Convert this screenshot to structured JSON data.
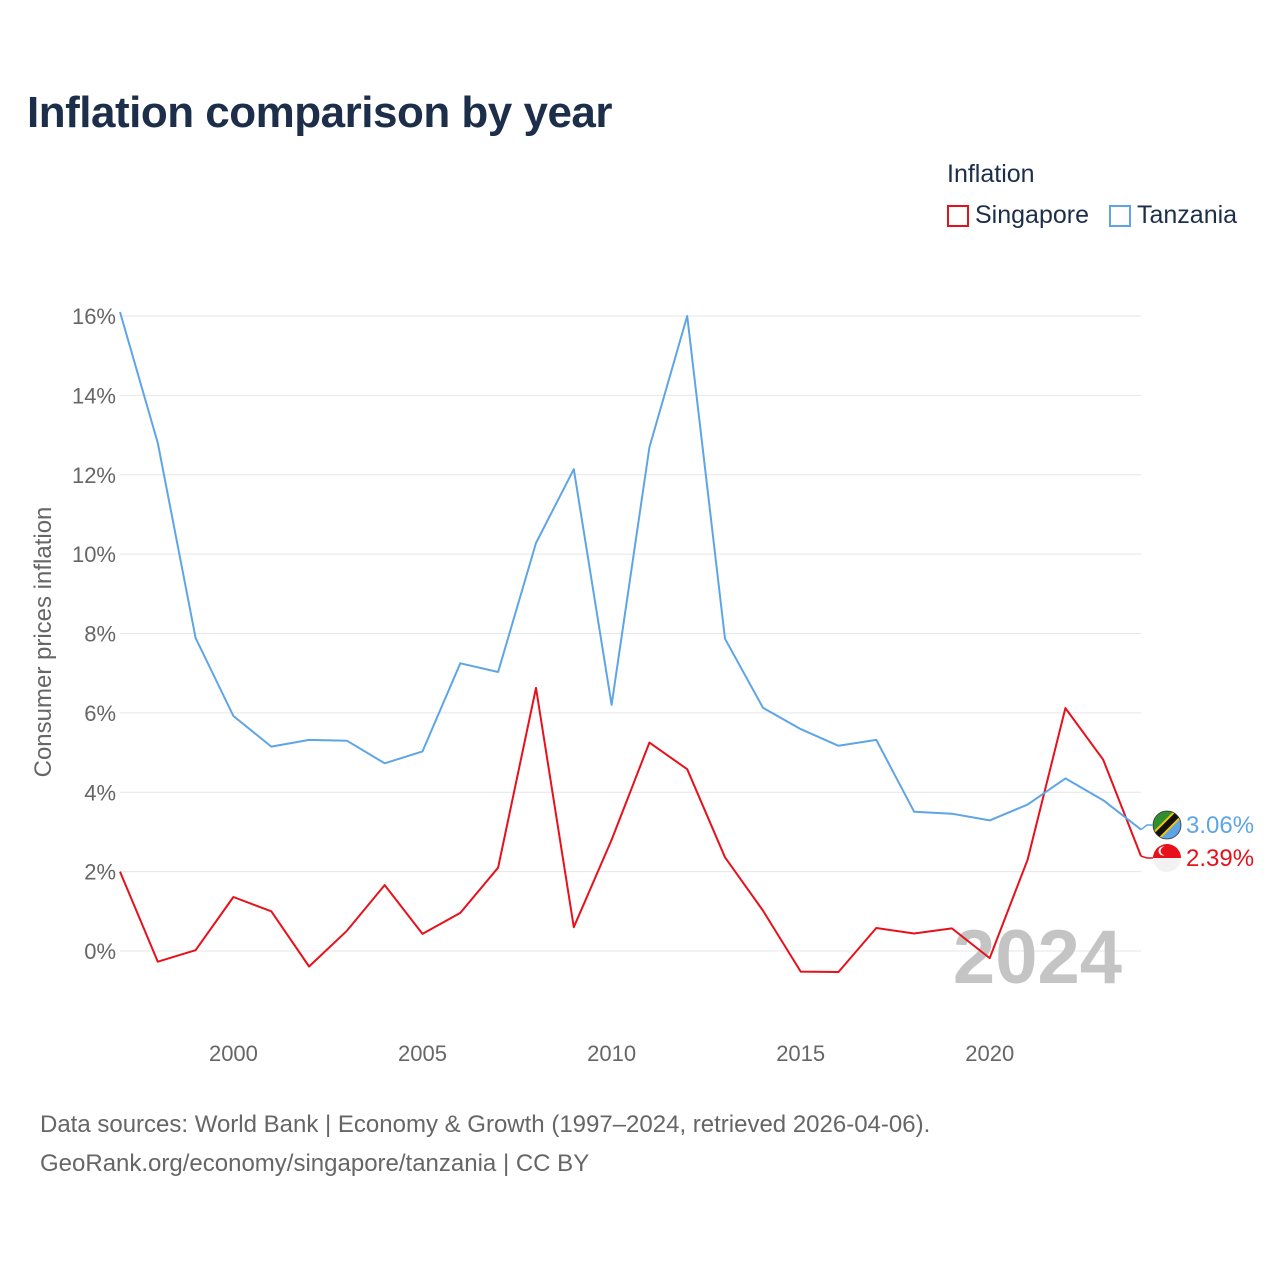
{
  "title": "Inflation comparison by year",
  "legend": {
    "title": "Inflation",
    "items": [
      {
        "label": "Singapore",
        "color": "#e8101a"
      },
      {
        "label": "Tanzania",
        "color": "#5ea5e6"
      }
    ]
  },
  "year_watermark": "2024",
  "footer": {
    "line1": "Data sources: World Bank | Economy & Growth (1997–2024, retrieved 2026-04-06).",
    "line2": "GeoRank.org/economy/singapore/tanzania | CC BY"
  },
  "chart_data": {
    "type": "line",
    "title": "Inflation comparison by year",
    "xlabel": "",
    "ylabel": "Consumer prices inflation",
    "xlim": [
      1997,
      2024
    ],
    "ylim": [
      -1,
      16
    ],
    "x_ticks": [
      2000,
      2005,
      2010,
      2015,
      2020
    ],
    "x_tick_labels": [
      "2000",
      "2005",
      "2010",
      "2015",
      "2020"
    ],
    "y_ticks": [
      0,
      2,
      4,
      6,
      8,
      10,
      12,
      14,
      16
    ],
    "y_tick_labels": [
      "0%",
      "2%",
      "4%",
      "6%",
      "8%",
      "10%",
      "12%",
      "14%",
      "16%"
    ],
    "grid": true,
    "x": [
      1997,
      1998,
      1999,
      2000,
      2001,
      2002,
      2003,
      2004,
      2005,
      2006,
      2007,
      2008,
      2009,
      2010,
      2011,
      2012,
      2013,
      2014,
      2015,
      2016,
      2017,
      2018,
      2019,
      2020,
      2021,
      2022,
      2023,
      2024
    ],
    "series": [
      {
        "name": "Singapore",
        "color": "#e8101a",
        "values": [
          2.0,
          -0.27,
          0.02,
          1.36,
          1.0,
          -0.39,
          0.51,
          1.66,
          0.43,
          0.96,
          2.1,
          6.63,
          0.6,
          2.8,
          5.25,
          4.58,
          2.36,
          1.02,
          -0.52,
          -0.53,
          0.58,
          0.44,
          0.57,
          -0.18,
          2.3,
          6.12,
          4.82,
          2.39
        ],
        "end_label": "2.39%",
        "flag": "singapore-flag"
      },
      {
        "name": "Tanzania",
        "color": "#5ea5e6",
        "values": [
          16.1,
          12.8,
          7.89,
          5.92,
          5.15,
          5.32,
          5.3,
          4.73,
          5.03,
          7.25,
          7.03,
          10.28,
          12.14,
          6.2,
          12.69,
          16.0,
          7.87,
          6.13,
          5.59,
          5.17,
          5.32,
          3.51,
          3.46,
          3.29,
          3.69,
          4.35,
          3.8,
          3.06
        ],
        "end_label": "3.06%",
        "flag": "tanzania-flag"
      }
    ]
  }
}
